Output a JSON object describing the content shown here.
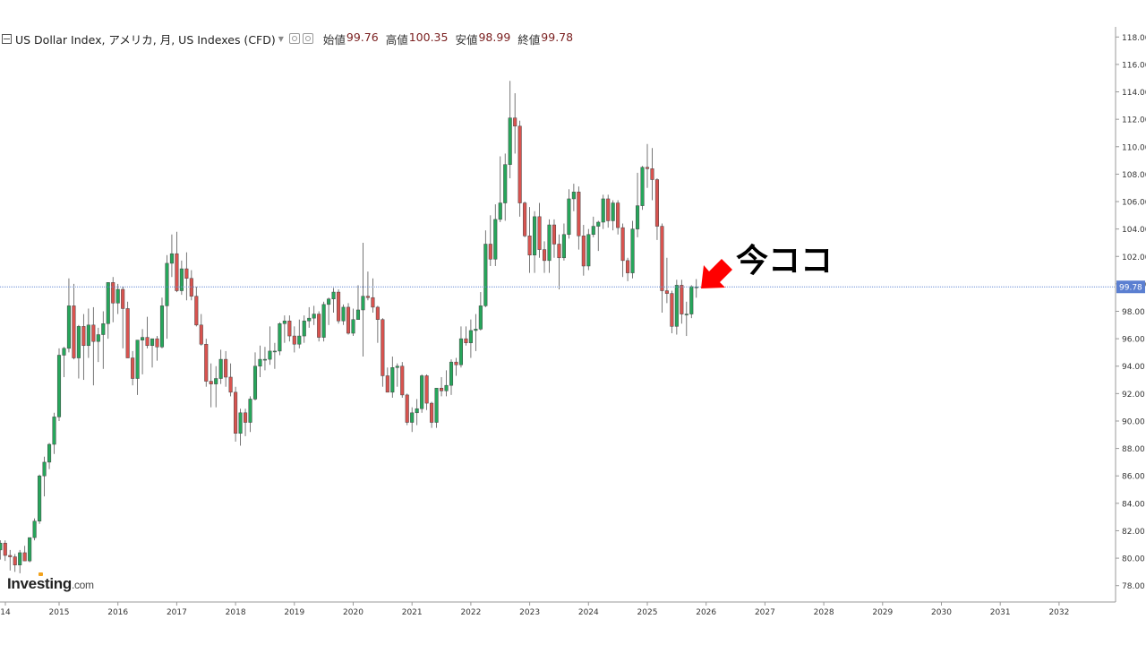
{
  "header": {
    "symbol_title": "US Dollar Index, アメリカ, 月, US Indexes (CFD)",
    "ohlc": [
      {
        "label": "始値",
        "value": "99.76"
      },
      {
        "label": "高値",
        "value": "100.35"
      },
      {
        "label": "安値",
        "value": "98.99"
      },
      {
        "label": "終値",
        "value": "99.78"
      }
    ]
  },
  "logo": {
    "name": "Investing",
    "suffix": ".com"
  },
  "annotation": {
    "text": "今ココ"
  },
  "colors": {
    "up": "#26a65b",
    "down": "#d9534f",
    "last_price_line": "#6a8dd6",
    "axis_text": "#333333",
    "arrow": "#ff0000"
  },
  "chart_data": {
    "type": "candlestick",
    "title": "US Dollar Index, アメリカ, 月, US Indexes (CFD)",
    "interval": "monthly",
    "last_price": 99.78,
    "y_ticks": [
      "78.00",
      "80.00",
      "82.00",
      "84.00",
      "86.00",
      "88.00",
      "90.00",
      "92.00",
      "94.00",
      "96.00",
      "98.00",
      "100.00",
      "102.00",
      "104.00",
      "106.00",
      "108.00",
      "110.00",
      "112.00",
      "114.00",
      "116.00",
      "118.00"
    ],
    "ylim": [
      77,
      118.5
    ],
    "x_ticks": [
      "14",
      "2015",
      "2016",
      "2017",
      "2018",
      "2019",
      "2020",
      "2021",
      "2022",
      "2023",
      "2024",
      "2025",
      "2026",
      "2027",
      "2028",
      "2029",
      "2030",
      "2031",
      "2032"
    ],
    "candles": [
      [
        "2014-01",
        80.6,
        81.3,
        79.9,
        81.1
      ],
      [
        "2014-02",
        81.1,
        81.3,
        79.8,
        80.2
      ],
      [
        "2014-03",
        80.2,
        80.6,
        79.1,
        80.1
      ],
      [
        "2014-04",
        80.1,
        80.3,
        79.0,
        79.5
      ],
      [
        "2014-05",
        79.5,
        80.6,
        78.9,
        80.4
      ],
      [
        "2014-06",
        80.4,
        80.9,
        79.8,
        79.8
      ],
      [
        "2014-07",
        79.8,
        81.5,
        79.7,
        81.5
      ],
      [
        "2014-08",
        81.5,
        82.9,
        81.3,
        82.7
      ],
      [
        "2014-09",
        82.7,
        86.1,
        82.5,
        86.0
      ],
      [
        "2014-10",
        86.0,
        87.4,
        84.5,
        87.0
      ],
      [
        "2014-11",
        87.0,
        88.4,
        86.5,
        88.3
      ],
      [
        "2014-12",
        88.3,
        90.6,
        87.6,
        90.3
      ],
      [
        "2015-01",
        90.3,
        95.3,
        90.0,
        94.8
      ],
      [
        "2015-02",
        94.8,
        95.4,
        93.2,
        95.3
      ],
      [
        "2015-03",
        95.3,
        100.4,
        95.0,
        98.4
      ],
      [
        "2015-04",
        98.4,
        100.0,
        94.5,
        94.6
      ],
      [
        "2015-05",
        94.6,
        97.0,
        93.1,
        96.9
      ],
      [
        "2015-06",
        96.9,
        97.8,
        93.0,
        95.5
      ],
      [
        "2015-07",
        95.5,
        98.2,
        94.6,
        97.0
      ],
      [
        "2015-08",
        97.0,
        98.3,
        92.6,
        95.8
      ],
      [
        "2015-09",
        95.8,
        96.8,
        94.3,
        96.3
      ],
      [
        "2015-10",
        96.3,
        98.0,
        93.8,
        97.1
      ],
      [
        "2015-11",
        97.1,
        100.1,
        96.0,
        100.1
      ],
      [
        "2015-12",
        100.1,
        100.5,
        97.2,
        98.6
      ],
      [
        "2016-01",
        98.6,
        100.0,
        97.8,
        99.6
      ],
      [
        "2016-02",
        99.6,
        99.8,
        95.3,
        98.2
      ],
      [
        "2016-03",
        98.2,
        98.7,
        94.6,
        94.6
      ],
      [
        "2016-04",
        94.6,
        95.1,
        92.6,
        93.1
      ],
      [
        "2016-05",
        93.1,
        95.9,
        91.9,
        95.9
      ],
      [
        "2016-06",
        95.9,
        96.7,
        93.4,
        96.1
      ],
      [
        "2016-07",
        96.1,
        97.6,
        95.3,
        95.5
      ],
      [
        "2016-08",
        95.5,
        96.0,
        93.9,
        96.0
      ],
      [
        "2016-09",
        96.0,
        96.2,
        94.4,
        95.4
      ],
      [
        "2016-10",
        95.4,
        99.0,
        95.3,
        98.4
      ],
      [
        "2016-11",
        98.4,
        102.1,
        96.0,
        101.5
      ],
      [
        "2016-12",
        101.5,
        103.6,
        100.5,
        102.2
      ],
      [
        "2017-01",
        102.2,
        103.8,
        99.4,
        99.5
      ],
      [
        "2017-02",
        99.5,
        101.7,
        99.2,
        101.1
      ],
      [
        "2017-03",
        101.1,
        102.3,
        98.8,
        100.4
      ],
      [
        "2017-04",
        100.4,
        101.0,
        98.8,
        99.1
      ],
      [
        "2017-05",
        99.1,
        99.8,
        96.9,
        97.0
      ],
      [
        "2017-06",
        97.0,
        97.8,
        95.5,
        95.6
      ],
      [
        "2017-07",
        95.6,
        96.0,
        92.5,
        92.9
      ],
      [
        "2017-08",
        92.9,
        94.2,
        91.0,
        92.7
      ],
      [
        "2017-09",
        92.7,
        94.0,
        91.0,
        93.1
      ],
      [
        "2017-10",
        93.1,
        95.2,
        92.7,
        94.5
      ],
      [
        "2017-11",
        94.5,
        95.1,
        92.5,
        93.2
      ],
      [
        "2017-12",
        93.2,
        94.2,
        91.8,
        92.1
      ],
      [
        "2018-01",
        92.1,
        92.5,
        88.5,
        89.1
      ],
      [
        "2018-02",
        89.1,
        90.9,
        88.2,
        90.6
      ],
      [
        "2018-03",
        90.6,
        90.9,
        88.9,
        89.9
      ],
      [
        "2018-04",
        89.9,
        91.8,
        89.2,
        91.6
      ],
      [
        "2018-05",
        91.6,
        95.0,
        91.5,
        94.0
      ],
      [
        "2018-06",
        94.0,
        95.5,
        93.2,
        94.5
      ],
      [
        "2018-07",
        94.5,
        95.4,
        93.7,
        94.5
      ],
      [
        "2018-08",
        94.5,
        96.9,
        94.1,
        95.1
      ],
      [
        "2018-09",
        95.1,
        95.7,
        93.8,
        95.1
      ],
      [
        "2018-10",
        95.1,
        97.2,
        94.8,
        97.1
      ],
      [
        "2018-11",
        97.1,
        97.7,
        95.7,
        97.3
      ],
      [
        "2018-12",
        97.3,
        97.7,
        95.8,
        96.2
      ],
      [
        "2019-01",
        96.2,
        96.9,
        95.0,
        95.6
      ],
      [
        "2019-02",
        95.6,
        97.4,
        95.3,
        96.2
      ],
      [
        "2019-03",
        96.2,
        97.7,
        95.7,
        97.3
      ],
      [
        "2019-04",
        97.3,
        98.3,
        96.8,
        97.5
      ],
      [
        "2019-05",
        97.5,
        98.4,
        97.0,
        97.8
      ],
      [
        "2019-06",
        97.8,
        98.0,
        95.8,
        96.1
      ],
      [
        "2019-07",
        96.1,
        98.7,
        95.8,
        98.5
      ],
      [
        "2019-08",
        98.5,
        99.0,
        97.0,
        98.9
      ],
      [
        "2019-09",
        98.9,
        99.7,
        97.9,
        99.4
      ],
      [
        "2019-10",
        99.4,
        99.6,
        97.1,
        97.3
      ],
      [
        "2019-11",
        97.3,
        98.5,
        97.0,
        98.3
      ],
      [
        "2019-12",
        98.3,
        98.6,
        96.3,
        96.4
      ],
      [
        "2020-01",
        96.4,
        98.2,
        96.2,
        97.4
      ],
      [
        "2020-02",
        97.4,
        99.9,
        97.4,
        98.1
      ],
      [
        "2020-03",
        98.1,
        103.0,
        94.7,
        99.1
      ],
      [
        "2020-04",
        99.1,
        100.9,
        98.8,
        99.0
      ],
      [
        "2020-05",
        99.0,
        100.4,
        97.9,
        98.3
      ],
      [
        "2020-06",
        98.3,
        98.4,
        95.7,
        97.4
      ],
      [
        "2020-07",
        97.4,
        97.5,
        92.5,
        93.3
      ],
      [
        "2020-08",
        93.3,
        93.9,
        92.1,
        92.1
      ],
      [
        "2020-09",
        92.1,
        94.7,
        91.7,
        93.9
      ],
      [
        "2020-10",
        93.9,
        94.2,
        92.5,
        94.0
      ],
      [
        "2020-11",
        94.0,
        94.3,
        91.7,
        91.9
      ],
      [
        "2020-12",
        91.9,
        92.0,
        89.7,
        89.9
      ],
      [
        "2021-01",
        89.9,
        91.0,
        89.2,
        90.6
      ],
      [
        "2021-02",
        90.6,
        91.6,
        89.7,
        90.9
      ],
      [
        "2021-03",
        90.9,
        93.4,
        90.6,
        93.3
      ],
      [
        "2021-04",
        93.3,
        93.4,
        90.8,
        91.3
      ],
      [
        "2021-05",
        91.3,
        91.4,
        89.5,
        89.9
      ],
      [
        "2021-06",
        89.9,
        92.4,
        89.5,
        92.4
      ],
      [
        "2021-07",
        92.4,
        93.2,
        91.8,
        92.2
      ],
      [
        "2021-08",
        92.2,
        93.7,
        91.8,
        92.6
      ],
      [
        "2021-09",
        92.6,
        94.5,
        91.9,
        94.3
      ],
      [
        "2021-10",
        94.3,
        94.6,
        93.3,
        94.1
      ],
      [
        "2021-11",
        94.1,
        96.9,
        93.9,
        96.0
      ],
      [
        "2021-12",
        96.0,
        96.9,
        95.5,
        95.7
      ],
      [
        "2022-01",
        95.7,
        97.4,
        94.6,
        96.6
      ],
      [
        "2022-02",
        96.6,
        97.8,
        95.1,
        96.7
      ],
      [
        "2022-03",
        96.7,
        99.4,
        96.6,
        98.4
      ],
      [
        "2022-04",
        98.4,
        103.9,
        98.3,
        102.9
      ],
      [
        "2022-05",
        102.9,
        105.0,
        101.3,
        101.8
      ],
      [
        "2022-06",
        101.8,
        105.8,
        101.3,
        104.7
      ],
      [
        "2022-07",
        104.7,
        109.3,
        104.5,
        105.9
      ],
      [
        "2022-08",
        105.9,
        109.5,
        104.6,
        108.7
      ],
      [
        "2022-09",
        108.7,
        114.8,
        107.7,
        112.1
      ],
      [
        "2022-10",
        112.1,
        113.9,
        109.5,
        111.5
      ],
      [
        "2022-11",
        111.5,
        111.9,
        104.9,
        105.9
      ],
      [
        "2022-12",
        105.9,
        106.0,
        103.4,
        103.5
      ],
      [
        "2023-01",
        103.5,
        105.6,
        100.8,
        102.1
      ],
      [
        "2023-02",
        102.1,
        105.3,
        100.8,
        104.9
      ],
      [
        "2023-03",
        104.9,
        105.9,
        101.9,
        102.5
      ],
      [
        "2023-04",
        102.5,
        103.1,
        100.8,
        101.7
      ],
      [
        "2023-05",
        101.7,
        104.7,
        100.8,
        104.3
      ],
      [
        "2023-06",
        104.3,
        104.7,
        101.9,
        102.9
      ],
      [
        "2023-07",
        102.9,
        103.6,
        99.6,
        101.9
      ],
      [
        "2023-08",
        101.9,
        104.4,
        101.7,
        103.6
      ],
      [
        "2023-09",
        103.6,
        106.9,
        103.3,
        106.2
      ],
      [
        "2023-10",
        106.2,
        107.3,
        105.3,
        106.7
      ],
      [
        "2023-11",
        106.7,
        107.1,
        102.5,
        103.5
      ],
      [
        "2023-12",
        103.5,
        104.3,
        100.6,
        101.3
      ],
      [
        "2024-01",
        101.3,
        104.0,
        101.0,
        103.6
      ],
      [
        "2024-02",
        103.6,
        104.9,
        103.4,
        104.2
      ],
      [
        "2024-03",
        104.2,
        104.6,
        102.4,
        104.5
      ],
      [
        "2024-04",
        104.5,
        106.5,
        104.0,
        106.2
      ],
      [
        "2024-05",
        106.2,
        106.5,
        104.1,
        104.6
      ],
      [
        "2024-06",
        104.6,
        106.1,
        103.9,
        105.9
      ],
      [
        "2024-07",
        105.9,
        106.1,
        103.6,
        104.1
      ],
      [
        "2024-08",
        104.1,
        104.4,
        100.5,
        101.7
      ],
      [
        "2024-09",
        101.7,
        101.9,
        100.2,
        100.8
      ],
      [
        "2024-10",
        100.8,
        104.6,
        100.4,
        104.0
      ],
      [
        "2024-11",
        104.0,
        108.1,
        103.4,
        105.7
      ],
      [
        "2024-12",
        105.7,
        108.6,
        105.4,
        108.5
      ],
      [
        "2025-01",
        108.5,
        110.2,
        107.0,
        108.4
      ],
      [
        "2025-02",
        108.4,
        109.9,
        106.1,
        107.6
      ],
      [
        "2025-03",
        107.6,
        107.7,
        103.2,
        104.2
      ],
      [
        "2025-04",
        104.2,
        104.4,
        97.9,
        99.5
      ],
      [
        "2025-05",
        99.5,
        101.9,
        98.6,
        99.3
      ],
      [
        "2025-06",
        99.3,
        99.5,
        96.4,
        96.9
      ],
      [
        "2025-07",
        96.9,
        100.3,
        96.3,
        99.9
      ],
      [
        "2025-08",
        99.9,
        100.3,
        97.1,
        97.8
      ],
      [
        "2025-09",
        97.8,
        98.7,
        96.2,
        97.8
      ],
      [
        "2025-10",
        97.8,
        99.9,
        97.5,
        99.8
      ],
      [
        "2025-11",
        99.76,
        100.35,
        98.99,
        99.78
      ]
    ]
  }
}
